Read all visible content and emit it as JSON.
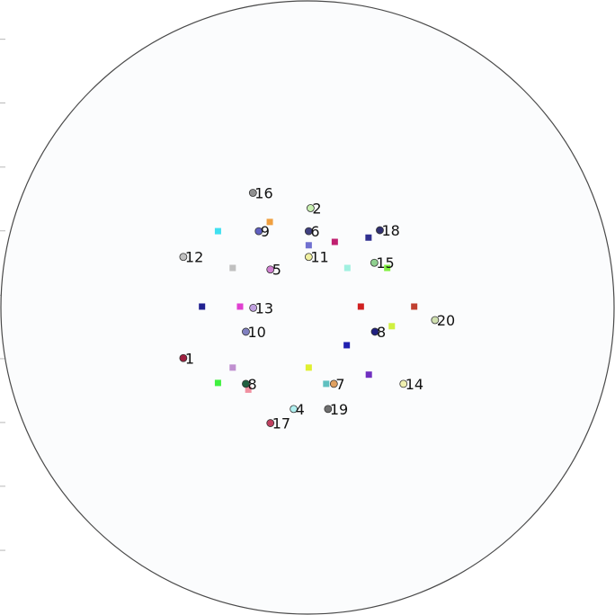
{
  "chart_data": {
    "type": "scatter",
    "title": "",
    "xlabel": "",
    "ylabel": "",
    "xlim": [
      -1,
      1
    ],
    "ylim": [
      -1,
      1
    ],
    "boundary": "unit-circle",
    "grid": false,
    "legend": "none",
    "y_ticks": [
      0.875,
      0.667,
      0.458,
      0.25,
      0.04,
      -0.167,
      -0.375,
      -0.583,
      -0.792
    ],
    "series": [
      {
        "marker": "circle",
        "points": [
          {
            "label": "1",
            "x": -0.405,
            "y": -0.165,
            "color": "#a02040"
          },
          {
            "label": "2",
            "x": 0.01,
            "y": 0.324,
            "color": "#c8f0b0"
          },
          {
            "label": "4",
            "x": -0.045,
            "y": -0.331,
            "color": "#b0f0f0"
          },
          {
            "label": "5",
            "x": -0.121,
            "y": 0.124,
            "color": "#d080d0"
          },
          {
            "label": "6",
            "x": 0.004,
            "y": 0.249,
            "color": "#404080"
          },
          {
            "label": "7",
            "x": 0.086,
            "y": -0.249,
            "color": "#e0a060"
          },
          {
            "label": "8",
            "x": -0.201,
            "y": -0.249,
            "color": "#206040"
          },
          {
            "label": "8",
            "x": 0.22,
            "y": -0.079,
            "color": "#202080"
          },
          {
            "label": "9",
            "x": -0.159,
            "y": 0.249,
            "color": "#6060c0"
          },
          {
            "label": "10",
            "x": -0.201,
            "y": -0.079,
            "color": "#8080c0"
          },
          {
            "label": "11",
            "x": 0.004,
            "y": 0.165,
            "color": "#f0f0a0"
          },
          {
            "label": "12",
            "x": -0.405,
            "y": 0.165,
            "color": "#c0c0c0"
          },
          {
            "label": "13",
            "x": -0.177,
            "y": -0.001,
            "color": "#c0a0e0"
          },
          {
            "label": "14",
            "x": 0.313,
            "y": -0.249,
            "color": "#f0f0b0"
          },
          {
            "label": "15",
            "x": 0.218,
            "y": 0.146,
            "color": "#90d090"
          },
          {
            "label": "16",
            "x": -0.178,
            "y": 0.374,
            "color": "#909090"
          },
          {
            "label": "17",
            "x": -0.121,
            "y": -0.377,
            "color": "#c04060"
          },
          {
            "label": "18",
            "x": 0.236,
            "y": 0.252,
            "color": "#303070"
          },
          {
            "label": "19",
            "x": 0.067,
            "y": -0.331,
            "color": "#707070"
          },
          {
            "label": "20",
            "x": 0.416,
            "y": -0.041,
            "color": "#d0e0b0"
          }
        ]
      },
      {
        "marker": "square",
        "points": [
          {
            "x": -0.292,
            "y": 0.249,
            "color": "#40e0f0"
          },
          {
            "x": -0.123,
            "y": 0.279,
            "color": "#f0a040"
          },
          {
            "x": 0.004,
            "y": 0.203,
            "color": "#7070d0"
          },
          {
            "x": 0.089,
            "y": 0.214,
            "color": "#c02070"
          },
          {
            "x": 0.199,
            "y": 0.228,
            "color": "#303090"
          },
          {
            "x": -0.244,
            "y": 0.129,
            "color": "#c0c0c0"
          },
          {
            "x": 0.13,
            "y": 0.129,
            "color": "#a0f0e0"
          },
          {
            "x": 0.26,
            "y": 0.129,
            "color": "#80f040"
          },
          {
            "x": -0.344,
            "y": 0.003,
            "color": "#202090"
          },
          {
            "x": -0.22,
            "y": 0.003,
            "color": "#e040d0"
          },
          {
            "x": 0.174,
            "y": 0.003,
            "color": "#d02020"
          },
          {
            "x": 0.348,
            "y": 0.003,
            "color": "#c04030"
          },
          {
            "x": 0.275,
            "y": -0.061,
            "color": "#d0f040"
          },
          {
            "x": 0.128,
            "y": -0.123,
            "color": "#2020b0"
          },
          {
            "x": -0.244,
            "y": -0.196,
            "color": "#c090d0"
          },
          {
            "x": 0.004,
            "y": -0.196,
            "color": "#e0f030"
          },
          {
            "x": 0.2,
            "y": -0.219,
            "color": "#7030c0"
          },
          {
            "x": -0.292,
            "y": -0.246,
            "color": "#40f040"
          },
          {
            "x": 0.061,
            "y": -0.249,
            "color": "#60c0c0"
          },
          {
            "x": -0.193,
            "y": -0.268,
            "color": "#f090a0"
          }
        ]
      }
    ]
  }
}
